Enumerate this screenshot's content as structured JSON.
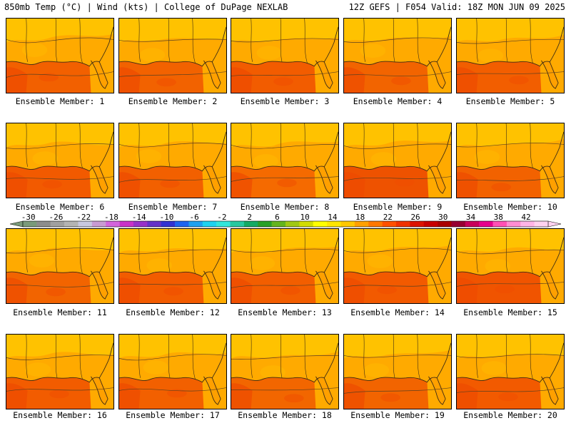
{
  "header": {
    "left": "850mb Temp (°C) | Wind (kts) | College of DuPage NEXLAB",
    "right": "12Z GEFS | F054 Valid: 18Z MON JUN 09 2025"
  },
  "panels": [
    {
      "label": "Ensemble Member: 1",
      "gulf_color": "#f26000"
    },
    {
      "label": "Ensemble Member: 2",
      "gulf_color": "#f26200"
    },
    {
      "label": "Ensemble Member: 3",
      "gulf_color": "#f25c00"
    },
    {
      "label": "Ensemble Member: 4",
      "gulf_color": "#f26400"
    },
    {
      "label": "Ensemble Member: 5",
      "gulf_color": "#f25e00"
    },
    {
      "label": "Ensemble Member: 6",
      "gulf_color": "#f25a00"
    },
    {
      "label": "Ensemble Member: 7",
      "gulf_color": "#f26000"
    },
    {
      "label": "Ensemble Member: 8",
      "gulf_color": "#f56a00"
    },
    {
      "label": "Ensemble Member: 9",
      "gulf_color": "#ee5200"
    },
    {
      "label": "Ensemble Member: 10",
      "gulf_color": "#f26200"
    },
    {
      "label": "Ensemble Member: 11",
      "gulf_color": "#f26400"
    },
    {
      "label": "Ensemble Member: 12",
      "gulf_color": "#f25c00"
    },
    {
      "label": "Ensemble Member: 13",
      "gulf_color": "#f25e00"
    },
    {
      "label": "Ensemble Member: 14",
      "gulf_color": "#f25a00"
    },
    {
      "label": "Ensemble Member: 15",
      "gulf_color": "#f05400"
    },
    {
      "label": "Ensemble Member: 16",
      "gulf_color": "#f25c00"
    },
    {
      "label": "Ensemble Member: 17",
      "gulf_color": "#f26000"
    },
    {
      "label": "Ensemble Member: 18",
      "gulf_color": "#f26600"
    },
    {
      "label": "Ensemble Member: 19",
      "gulf_color": "#f26400"
    },
    {
      "label": "Ensemble Member: 20",
      "gulf_color": "#f25a00"
    }
  ],
  "colorbar": {
    "tick_labels": [
      "-30",
      "-26",
      "-22",
      "-18",
      "-14",
      "-10",
      "-6",
      "-2",
      "2",
      "6",
      "10",
      "14",
      "18",
      "22",
      "26",
      "30",
      "34",
      "38",
      "42"
    ],
    "colors": [
      "#7a9a7a",
      "#8c8c8c",
      "#a0a0a0",
      "#b4b4b4",
      "#c8c8e0",
      "#c89bd2",
      "#d264dc",
      "#c832c8",
      "#9632c8",
      "#6432c8",
      "#3232d2",
      "#1e64f0",
      "#1ea0f0",
      "#1ed2f0",
      "#32e6dc",
      "#28c8a0",
      "#14aa64",
      "#28a028",
      "#64b41e",
      "#a0c814",
      "#d2dc00",
      "#ffff00",
      "#ffe600",
      "#ffc800",
      "#ffa000",
      "#ff7800",
      "#ff5000",
      "#f03200",
      "#dc1400",
      "#c80000",
      "#aa0000",
      "#960032",
      "#c8005a",
      "#e6008c",
      "#ff50b4",
      "#ff8cd2",
      "#ffb4e6",
      "#ffd2f0"
    ]
  },
  "map_colors": {
    "land_north": "#ffc400",
    "land_mid": "#ffaa00",
    "gulf_base": "#f56e00",
    "coast_line": "#3a2a14"
  }
}
